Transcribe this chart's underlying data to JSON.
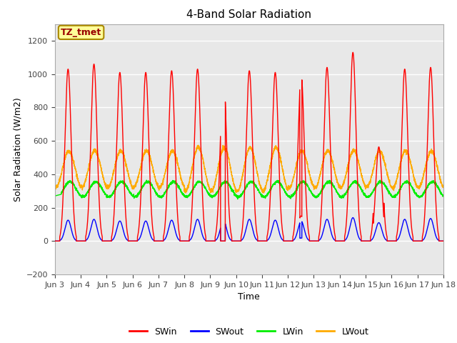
{
  "title": "4-Band Solar Radiation",
  "xlabel": "Time",
  "ylabel": "Solar Radiation (W/m2)",
  "ylim": [
    -200,
    1300
  ],
  "yticks": [
    -200,
    0,
    200,
    400,
    600,
    800,
    1000,
    1200
  ],
  "x_tick_labels": [
    "Jun 3",
    "Jun 4",
    "Jun 5",
    "Jun 6",
    "Jun 7",
    "Jun 8",
    "Jun 9",
    "Jun 10",
    "Jun 11",
    "Jun 12",
    "Jun 13",
    "Jun 14",
    "Jun 15",
    "Jun 16",
    "Jun 17",
    "Jun 18"
  ],
  "annotation_text": "TZ_tmet",
  "annotation_box_color": "#ffff99",
  "annotation_box_edge": "#aa8800",
  "colors": {
    "SWin": "#ff0000",
    "SWout": "#0000ff",
    "LWin": "#00ee00",
    "LWout": "#ffaa00"
  },
  "background_color": "#ffffff",
  "plot_bg_color": "#e8e8e8",
  "grid_color": "#ffffff",
  "n_days": 15,
  "dt": 0.1
}
